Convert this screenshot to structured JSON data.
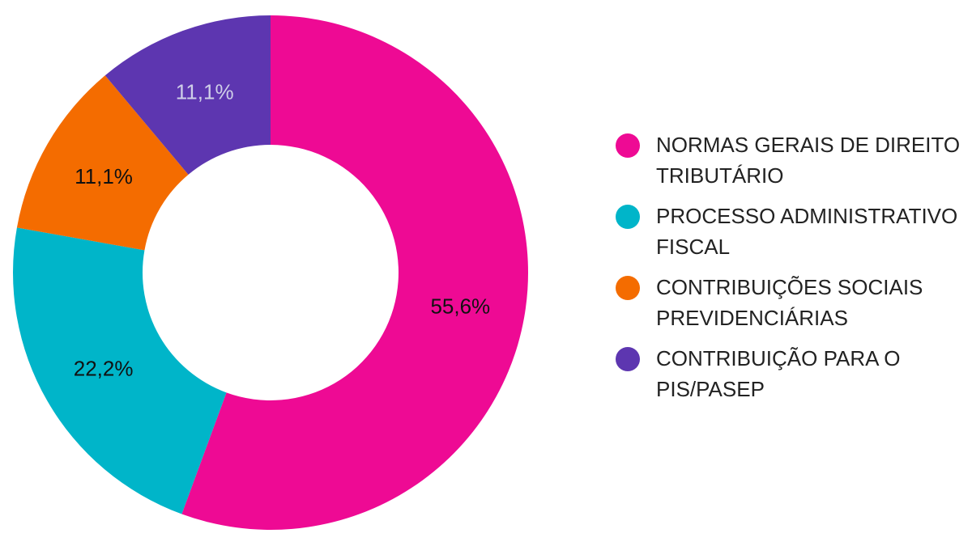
{
  "chart_data": {
    "type": "pie",
    "title": "",
    "categories": [
      "NORMAS GERAIS DE DIREITO TRIBUTÁRIO",
      "PROCESSO ADMINISTRATIVO FISCAL",
      "CONTRIBUIÇÕES SOCIAIS PREVIDENCIÁRIAS",
      "CONTRIBUIÇÃO PARA O PIS/PASEP"
    ],
    "values": [
      55.6,
      22.2,
      11.1,
      11.1
    ],
    "value_labels": [
      "55,6%",
      "22,2%",
      "11,1%",
      "11,1%"
    ],
    "colors": [
      "#ee0a94",
      "#00b5c9",
      "#f46c00",
      "#5d36b0"
    ],
    "label_colors": [
      "#111111",
      "#111111",
      "#111111",
      "#cfcfe8"
    ],
    "donut": true,
    "legend_position": "right"
  }
}
